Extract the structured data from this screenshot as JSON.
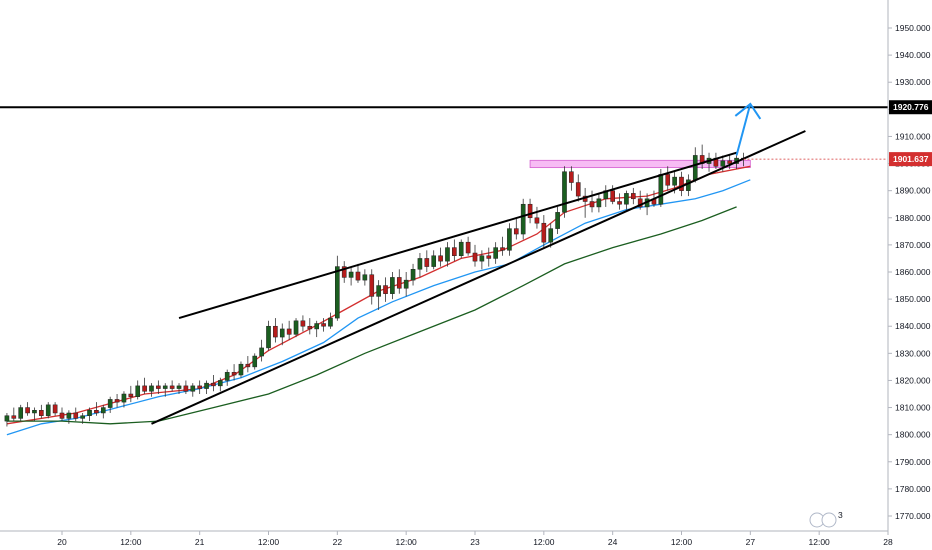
{
  "chart_data": {
    "type": "candlestick",
    "symbol_timeframe": "intraday",
    "y_axis": {
      "min": 1765,
      "max": 1957,
      "ticks": [
        1770,
        1780,
        1790,
        1800,
        1810,
        1820,
        1830,
        1840,
        1850,
        1860,
        1870,
        1880,
        1890,
        1900,
        1910,
        1920,
        1930,
        1940,
        1950
      ],
      "tick_labels": [
        "1770.000",
        "1780.000",
        "1790.000",
        "1800.000",
        "1810.000",
        "1820.000",
        "1830.000",
        "1840.000",
        "1850.000",
        "1860.000",
        "1870.000",
        "1880.000",
        "1890.000",
        "1900.000",
        "1910.000",
        "1920.000",
        "1930.000",
        "1940.000",
        "1950.000"
      ]
    },
    "x_axis": {
      "min": 0,
      "max": 128,
      "labels": [
        {
          "t": 8,
          "text": "20"
        },
        {
          "t": 18,
          "text": "12:00"
        },
        {
          "t": 28,
          "text": "21"
        },
        {
          "t": 38,
          "text": "12:00"
        },
        {
          "t": 48,
          "text": "22"
        },
        {
          "t": 58,
          "text": "12:00"
        },
        {
          "t": 68,
          "text": "23"
        },
        {
          "t": 78,
          "text": "12:00"
        },
        {
          "t": 88,
          "text": "24"
        },
        {
          "t": 98,
          "text": "12:00"
        },
        {
          "t": 108,
          "text": "27"
        },
        {
          "t": 118,
          "text": "12:00"
        },
        {
          "t": 128,
          "text": "28"
        }
      ]
    },
    "horizontal_level": {
      "value": 1920.776,
      "label": "1920.776"
    },
    "current_price": {
      "value": 1901.637,
      "label": "1901.637"
    },
    "candles": [
      [
        1805,
        1808,
        1803,
        1807
      ],
      [
        1807,
        1810,
        1805,
        1806
      ],
      [
        1806,
        1811,
        1805,
        1810
      ],
      [
        1810,
        1812,
        1807,
        1808
      ],
      [
        1808,
        1810,
        1805,
        1809
      ],
      [
        1809,
        1811,
        1806,
        1807
      ],
      [
        1807,
        1812,
        1806,
        1811
      ],
      [
        1811,
        1812,
        1807,
        1808
      ],
      [
        1808,
        1810,
        1805,
        1806
      ],
      [
        1806,
        1809,
        1804,
        1808
      ],
      [
        1808,
        1810,
        1805,
        1806
      ],
      [
        1806,
        1808,
        1804,
        1807
      ],
      [
        1807,
        1810,
        1805,
        1809
      ],
      [
        1809,
        1812,
        1807,
        1808
      ],
      [
        1808,
        1811,
        1806,
        1810
      ],
      [
        1810,
        1814,
        1808,
        1813
      ],
      [
        1813,
        1815,
        1810,
        1812
      ],
      [
        1812,
        1816,
        1810,
        1815
      ],
      [
        1815,
        1818,
        1812,
        1814
      ],
      [
        1814,
        1820,
        1813,
        1818
      ],
      [
        1818,
        1821,
        1815,
        1816
      ],
      [
        1816,
        1819,
        1814,
        1818
      ],
      [
        1818,
        1820,
        1815,
        1817
      ],
      [
        1817,
        1819,
        1814,
        1818
      ],
      [
        1818,
        1820,
        1816,
        1817
      ],
      [
        1817,
        1819,
        1815,
        1818
      ],
      [
        1818,
        1820,
        1815,
        1816
      ],
      [
        1816,
        1819,
        1814,
        1818
      ],
      [
        1818,
        1820,
        1815,
        1817
      ],
      [
        1817,
        1820,
        1815,
        1819
      ],
      [
        1819,
        1822,
        1816,
        1818
      ],
      [
        1818,
        1821,
        1816,
        1820
      ],
      [
        1820,
        1824,
        1818,
        1823
      ],
      [
        1823,
        1826,
        1820,
        1822
      ],
      [
        1822,
        1827,
        1821,
        1826
      ],
      [
        1826,
        1829,
        1823,
        1825
      ],
      [
        1825,
        1830,
        1824,
        1829
      ],
      [
        1829,
        1835,
        1827,
        1832
      ],
      [
        1832,
        1842,
        1831,
        1840
      ],
      [
        1840,
        1843,
        1834,
        1836
      ],
      [
        1836,
        1841,
        1833,
        1839
      ],
      [
        1839,
        1842,
        1835,
        1837
      ],
      [
        1837,
        1843,
        1836,
        1842
      ],
      [
        1842,
        1844,
        1838,
        1840
      ],
      [
        1840,
        1843,
        1837,
        1839
      ],
      [
        1839,
        1842,
        1836,
        1841
      ],
      [
        1841,
        1843,
        1838,
        1840
      ],
      [
        1840,
        1845,
        1839,
        1843
      ],
      [
        1843,
        1866,
        1842,
        1862
      ],
      [
        1862,
        1864,
        1856,
        1858
      ],
      [
        1858,
        1862,
        1855,
        1860
      ],
      [
        1860,
        1863,
        1856,
        1857
      ],
      [
        1857,
        1861,
        1855,
        1859
      ],
      [
        1859,
        1861,
        1848,
        1851
      ],
      [
        1851,
        1857,
        1846,
        1855
      ],
      [
        1855,
        1858,
        1849,
        1852
      ],
      [
        1852,
        1860,
        1850,
        1858
      ],
      [
        1858,
        1861,
        1852,
        1854
      ],
      [
        1854,
        1860,
        1851,
        1857
      ],
      [
        1857,
        1863,
        1855,
        1861
      ],
      [
        1861,
        1867,
        1858,
        1865
      ],
      [
        1865,
        1868,
        1860,
        1862
      ],
      [
        1862,
        1868,
        1861,
        1866
      ],
      [
        1866,
        1869,
        1862,
        1864
      ],
      [
        1864,
        1871,
        1862,
        1869
      ],
      [
        1869,
        1872,
        1864,
        1866
      ],
      [
        1866,
        1872,
        1865,
        1871
      ],
      [
        1871,
        1873,
        1866,
        1867
      ],
      [
        1867,
        1870,
        1862,
        1864
      ],
      [
        1864,
        1868,
        1861,
        1866
      ],
      [
        1866,
        1869,
        1862,
        1865
      ],
      [
        1865,
        1871,
        1863,
        1869
      ],
      [
        1869,
        1873,
        1866,
        1868
      ],
      [
        1868,
        1878,
        1866,
        1876
      ],
      [
        1876,
        1880,
        1872,
        1874
      ],
      [
        1874,
        1887,
        1872,
        1885
      ],
      [
        1885,
        1887,
        1878,
        1880
      ],
      [
        1880,
        1884,
        1876,
        1878
      ],
      [
        1878,
        1881,
        1869,
        1871
      ],
      [
        1871,
        1878,
        1869,
        1876
      ],
      [
        1876,
        1884,
        1874,
        1882
      ],
      [
        1882,
        1899,
        1880,
        1897
      ],
      [
        1897,
        1899,
        1890,
        1893
      ],
      [
        1893,
        1896,
        1886,
        1888
      ],
      [
        1888,
        1891,
        1880,
        1886
      ],
      [
        1886,
        1890,
        1882,
        1884
      ],
      [
        1884,
        1889,
        1882,
        1887
      ],
      [
        1887,
        1892,
        1884,
        1890
      ],
      [
        1890,
        1892,
        1885,
        1886
      ],
      [
        1886,
        1889,
        1883,
        1885
      ],
      [
        1885,
        1890,
        1883,
        1889
      ],
      [
        1889,
        1891,
        1885,
        1887
      ],
      [
        1887,
        1890,
        1883,
        1884
      ],
      [
        1884,
        1889,
        1881,
        1887
      ],
      [
        1887,
        1890,
        1884,
        1885
      ],
      [
        1885,
        1898,
        1884,
        1896
      ],
      [
        1896,
        1899,
        1890,
        1892
      ],
      [
        1892,
        1897,
        1889,
        1895
      ],
      [
        1895,
        1897,
        1888,
        1890
      ],
      [
        1890,
        1896,
        1888,
        1894
      ],
      [
        1894,
        1906,
        1893,
        1903
      ],
      [
        1903,
        1907,
        1898,
        1900
      ],
      [
        1900,
        1904,
        1897,
        1902
      ],
      [
        1902,
        1904,
        1898,
        1899
      ],
      [
        1899,
        1903,
        1897,
        1901
      ],
      [
        1901,
        1903,
        1898,
        1900
      ],
      [
        1900,
        1903,
        1898,
        1902
      ],
      [
        1902,
        1904,
        1899,
        1901.637
      ]
    ],
    "series": [
      {
        "name": "",
        "color": "#d32f2f",
        "values": [
          [
            0,
            1804
          ],
          [
            10,
            1808
          ],
          [
            20,
            1815
          ],
          [
            28,
            1817
          ],
          [
            33,
            1822
          ],
          [
            38,
            1831
          ],
          [
            44,
            1839
          ],
          [
            49,
            1846
          ],
          [
            54,
            1853
          ],
          [
            60,
            1858
          ],
          [
            66,
            1865
          ],
          [
            72,
            1868
          ],
          [
            77,
            1874
          ],
          [
            81,
            1882
          ],
          [
            87,
            1887
          ],
          [
            93,
            1888
          ],
          [
            97,
            1891
          ],
          [
            102,
            1896
          ],
          [
            108,
            1899
          ]
        ]
      },
      {
        "name": "",
        "color": "#2196f3",
        "values": [
          [
            0,
            1800
          ],
          [
            5,
            1804
          ],
          [
            10,
            1806
          ],
          [
            16,
            1810
          ],
          [
            22,
            1814
          ],
          [
            28,
            1817
          ],
          [
            34,
            1821
          ],
          [
            40,
            1827
          ],
          [
            46,
            1834
          ],
          [
            51,
            1843
          ],
          [
            56,
            1849
          ],
          [
            62,
            1855
          ],
          [
            68,
            1860
          ],
          [
            73,
            1863
          ],
          [
            78,
            1870
          ],
          [
            84,
            1878
          ],
          [
            90,
            1883
          ],
          [
            95,
            1885
          ],
          [
            100,
            1887
          ],
          [
            104,
            1890
          ],
          [
            108,
            1894
          ]
        ]
      },
      {
        "name": "",
        "color": "#1b5e20",
        "values": [
          [
            0,
            1805
          ],
          [
            8,
            1805
          ],
          [
            15,
            1804
          ],
          [
            22,
            1805
          ],
          [
            30,
            1810
          ],
          [
            38,
            1815
          ],
          [
            45,
            1822
          ],
          [
            52,
            1830
          ],
          [
            60,
            1838
          ],
          [
            68,
            1846
          ],
          [
            75,
            1855
          ],
          [
            81,
            1863
          ],
          [
            88,
            1869
          ],
          [
            95,
            1874
          ],
          [
            101,
            1879
          ],
          [
            106,
            1884
          ]
        ]
      }
    ],
    "channel": {
      "color": "#000000",
      "upper": [
        [
          25,
          1843
        ],
        [
          106,
          1904
        ]
      ],
      "lower": [
        [
          21,
          1804
        ],
        [
          116,
          1912
        ]
      ]
    },
    "resistance_zone": {
      "color": "#f4a6f0",
      "x1": 76,
      "x2": 108,
      "y_low": 1898.5,
      "y_high": 1901.2
    },
    "projection_arrow": {
      "color": "#2196f3",
      "points": [
        [
          106,
          1903
        ],
        [
          108,
          1922
        ]
      ]
    },
    "watermark": {
      "text": "3"
    }
  }
}
